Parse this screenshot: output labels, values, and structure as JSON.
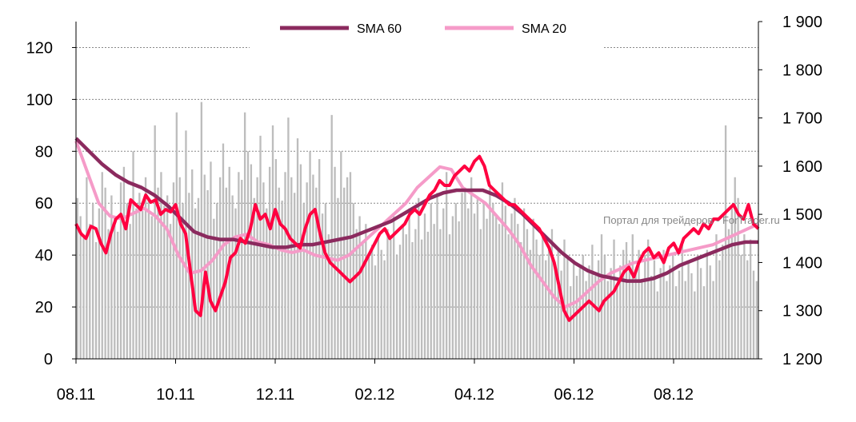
{
  "chart_data": {
    "type": "bar+line",
    "title": "",
    "x_ticks": [
      "08.11",
      "10.11",
      "12.11",
      "02.12",
      "04.12",
      "06.12",
      "08.12"
    ],
    "left_axis": {
      "ticks": [
        "0",
        "20",
        "40",
        "60",
        "80",
        "100",
        "120"
      ],
      "range": [
        0,
        130
      ]
    },
    "right_axis": {
      "ticks": [
        "1 200",
        "1 300",
        "1 400",
        "1 500",
        "1 600",
        "1 700",
        "1 800",
        "1 900"
      ],
      "range": [
        1200,
        1900
      ]
    },
    "grid": "dashed horizontal",
    "legend": {
      "position": "top",
      "items": [
        {
          "label": "SMA 60",
          "color": "#8B2A5E"
        },
        {
          "label": "SMA 20",
          "color": "#F59BC8"
        }
      ]
    },
    "watermark": "Портал для трейдеров - ForTrader.ru",
    "colors": {
      "bars": "#BDBDBD",
      "price": "#FF0040",
      "sma60": "#8B2A5E",
      "sma20": "#F59BC8"
    },
    "bars_series": {
      "axis": "left",
      "values": [
        62,
        55,
        48,
        70,
        52,
        60,
        45,
        58,
        72,
        66,
        50,
        63,
        55,
        49,
        68,
        74,
        60,
        52,
        80,
        58,
        64,
        57,
        70,
        61,
        55,
        90,
        66,
        72,
        59,
        63,
        52,
        68,
        95,
        70,
        60,
        88,
        64,
        73,
        58,
        62,
        99,
        71,
        65,
        76,
        54,
        60,
        70,
        83,
        66,
        74,
        63,
        58,
        72,
        69,
        95,
        80,
        75,
        62,
        70,
        86,
        68,
        58,
        74,
        90,
        77,
        66,
        61,
        72,
        93,
        70,
        64,
        85,
        75,
        60,
        68,
        80,
        71,
        66,
        77,
        56,
        60,
        48,
        94,
        74,
        62,
        80,
        66,
        70,
        72,
        60,
        50,
        55,
        45,
        52,
        40,
        44,
        36,
        48,
        42,
        38,
        50,
        46,
        55,
        40,
        44,
        52,
        48,
        58,
        45,
        50,
        62,
        46,
        56,
        49,
        60,
        52,
        64,
        50,
        58,
        72,
        48,
        55,
        60,
        53,
        64,
        66,
        58,
        70,
        56,
        62,
        50,
        60,
        54,
        66,
        60,
        55,
        52,
        68,
        59,
        48,
        56,
        62,
        52,
        45,
        58,
        50,
        42,
        54,
        46,
        40,
        48,
        38,
        44,
        50,
        36,
        42,
        34,
        46,
        40,
        28,
        38,
        32,
        35,
        40,
        30,
        36,
        44,
        32,
        38,
        48,
        40,
        30,
        35,
        46,
        28,
        36,
        42,
        45,
        38,
        48,
        34,
        42,
        30,
        40,
        46,
        32,
        38,
        26,
        35,
        42,
        30,
        36,
        40,
        28,
        34,
        44,
        30,
        38,
        33,
        26,
        40,
        35,
        28,
        42,
        36,
        30,
        48,
        38,
        44,
        90,
        50,
        58,
        70,
        62,
        40,
        48,
        38,
        46,
        34,
        30
      ]
    },
    "price_series": {
      "axis": "right",
      "name": "",
      "values": [
        1480,
        1460,
        1450,
        1475,
        1470,
        1440,
        1420,
        1460,
        1490,
        1500,
        1470,
        1530,
        1520,
        1510,
        1540,
        1525,
        1530,
        1500,
        1510,
        1505,
        1520,
        1480,
        1460,
        1380,
        1300,
        1290,
        1380,
        1320,
        1300,
        1330,
        1360,
        1410,
        1420,
        1450,
        1440,
        1470,
        1520,
        1490,
        1500,
        1470,
        1510,
        1480,
        1470,
        1450,
        1440,
        1430,
        1470,
        1500,
        1510,
        1460,
        1420,
        1400,
        1390,
        1380,
        1370,
        1360,
        1370,
        1380,
        1400,
        1420,
        1440,
        1460,
        1470,
        1450,
        1460,
        1470,
        1480,
        1500,
        1510,
        1500,
        1520,
        1540,
        1550,
        1570,
        1560,
        1560,
        1580,
        1590,
        1600,
        1590,
        1610,
        1620,
        1600,
        1560,
        1550,
        1540,
        1530,
        1520,
        1520,
        1510,
        1500,
        1490,
        1480,
        1470,
        1450,
        1430,
        1400,
        1350,
        1300,
        1280,
        1290,
        1300,
        1310,
        1320,
        1310,
        1300,
        1320,
        1330,
        1340,
        1360,
        1380,
        1390,
        1370,
        1400,
        1420,
        1430,
        1410,
        1420,
        1400,
        1430,
        1440,
        1420,
        1450,
        1460,
        1470,
        1460,
        1480,
        1470,
        1490,
        1490,
        1500,
        1510,
        1520,
        1500,
        1490,
        1520,
        1480,
        1470
      ]
    },
    "sma60_series": {
      "axis": "left",
      "values": [
        85,
        80,
        75,
        71,
        68,
        66,
        63,
        59,
        54,
        49,
        47,
        46,
        46,
        45,
        44,
        43,
        43,
        44,
        44,
        45,
        46,
        47,
        49,
        51,
        53,
        56,
        59,
        62,
        64,
        65,
        65,
        65,
        63,
        60,
        56,
        51,
        46,
        41,
        37,
        34,
        32,
        31,
        30,
        30,
        31,
        33,
        36,
        38,
        40,
        42,
        44,
        45,
        45
      ]
    },
    "sma20_series": {
      "axis": "left",
      "values": [
        84,
        72,
        60,
        55,
        54,
        56,
        58,
        55,
        50,
        40,
        33,
        34,
        38,
        44,
        47,
        48,
        45,
        44,
        42,
        41,
        42,
        40,
        39,
        38,
        40,
        44,
        48,
        52,
        56,
        60,
        66,
        70,
        74,
        73,
        66,
        63,
        60,
        55,
        50,
        44,
        36,
        30,
        24,
        20,
        22,
        26,
        30,
        33,
        35,
        37,
        38,
        39,
        40,
        41,
        42,
        43,
        44,
        46,
        48,
        50,
        52
      ]
    }
  }
}
